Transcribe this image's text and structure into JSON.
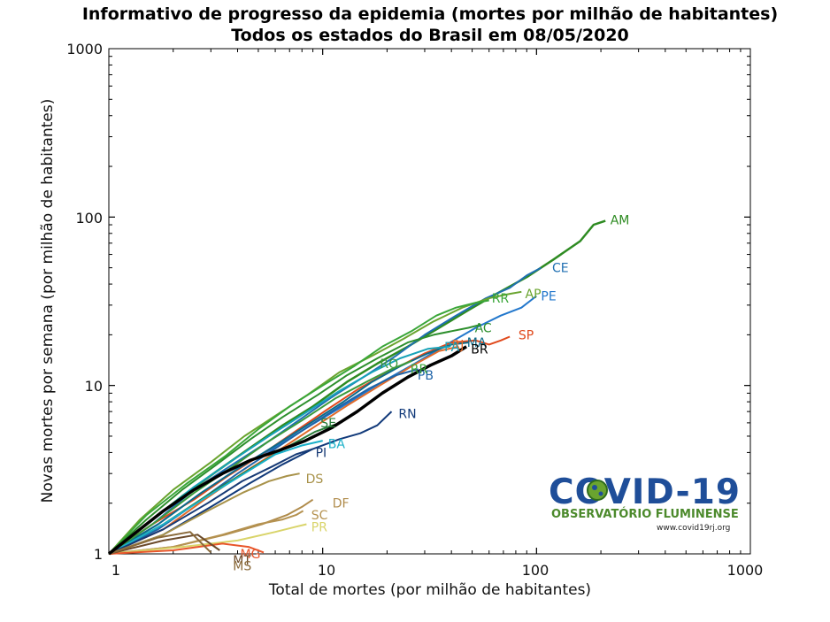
{
  "chart_data": {
    "type": "line",
    "title": "Informativo de progresso da epidemia (mortes por milhão de habitantes)",
    "subtitle": "Todos os estados do Brasil em 08/05/2020",
    "xlabel": "Total de mortes (por milhão de habitantes)",
    "ylabel": "Novas mortes por semana (por milhão de habitantes)",
    "x_scale": "log",
    "y_scale": "log",
    "xlim": [
      1,
      1000
    ],
    "ylim": [
      1,
      1000
    ],
    "x_ticks": [
      "1",
      "10",
      "100",
      "1000"
    ],
    "y_ticks": [
      "1",
      "10",
      "100",
      "1000"
    ],
    "grid": false,
    "series": [
      {
        "name": "AM",
        "color": "#2e8b22",
        "width": 2.5,
        "x": [
          1,
          1.5,
          2.2,
          3.2,
          4.5,
          6.5,
          9,
          13,
          18,
          25,
          35,
          48,
          65,
          90,
          120,
          160,
          185,
          210
        ],
        "y": [
          1,
          1.5,
          2.2,
          3.1,
          4.2,
          5.8,
          7.5,
          10.5,
          13.5,
          17,
          22,
          28,
          35,
          44,
          56,
          72,
          90,
          95
        ]
      },
      {
        "name": "CE",
        "color": "#1f6fb2",
        "width": 2,
        "x": [
          1,
          1.6,
          2.5,
          3.8,
          5.5,
          8,
          11,
          16,
          22,
          30,
          42,
          58,
          75,
          90,
          105
        ],
        "y": [
          1,
          1.5,
          2.4,
          3.4,
          4.6,
          6.4,
          8.5,
          11.5,
          15,
          20,
          26,
          33,
          38,
          45,
          50
        ]
      },
      {
        "name": "AP",
        "color": "#6aa42f",
        "width": 2,
        "x": [
          1,
          1.4,
          2,
          3,
          4.3,
          6,
          8.5,
          12,
          17,
          24,
          33,
          45,
          60,
          75,
          85
        ],
        "y": [
          1,
          1.6,
          2.4,
          3.5,
          5,
          6.6,
          8.8,
          12,
          15,
          19,
          24,
          29,
          33,
          35,
          36
        ]
      },
      {
        "name": "PE",
        "color": "#2277cc",
        "width": 2,
        "x": [
          1,
          1.7,
          2.7,
          4,
          6,
          9,
          13,
          19,
          27,
          38,
          52,
          68,
          85,
          100
        ],
        "y": [
          1,
          1.5,
          2.3,
          3.2,
          4.3,
          5.9,
          7.8,
          10.5,
          13.5,
          17.5,
          22,
          26,
          29,
          34
        ]
      },
      {
        "name": "RR",
        "color": "#3aa639",
        "width": 2,
        "x": [
          1,
          1.5,
          2.3,
          3.5,
          5,
          7,
          10,
          14,
          19,
          26,
          34,
          42,
          52,
          60
        ],
        "y": [
          1,
          1.7,
          2.6,
          3.8,
          5.5,
          7.5,
          10,
          13,
          17,
          21,
          26,
          29,
          31,
          32
        ]
      },
      {
        "name": "SP",
        "color": "#e0491c",
        "width": 2,
        "x": [
          1,
          1.6,
          2.5,
          3.6,
          5.2,
          7.4,
          10.5,
          15,
          21,
          30,
          40,
          52,
          60,
          68,
          75
        ],
        "y": [
          1,
          1.5,
          2.1,
          2.9,
          3.9,
          5.3,
          7.2,
          9.7,
          12.3,
          15.5,
          18,
          18.5,
          17.5,
          18.5,
          19.5
        ]
      },
      {
        "name": "AC",
        "color": "#2d8f2d",
        "width": 2,
        "x": [
          1,
          1.5,
          2.2,
          3.2,
          4.6,
          6.5,
          9.5,
          13,
          18,
          25,
          33,
          40,
          48,
          55
        ],
        "y": [
          1,
          1.6,
          2.4,
          3.4,
          4.8,
          6.5,
          8.8,
          11.5,
          14.5,
          18,
          20,
          21,
          22,
          23
        ]
      },
      {
        "name": "MA",
        "color": "#0d6b8a",
        "width": 2,
        "x": [
          1,
          1.7,
          2.7,
          4,
          6,
          8.8,
          12.5,
          17,
          23,
          31,
          40,
          48
        ],
        "y": [
          1,
          1.5,
          2.3,
          3.2,
          4.4,
          6,
          8,
          10.5,
          13,
          15.5,
          17.5,
          18
        ]
      },
      {
        "name": "RJ",
        "color": "#e06a2a",
        "width": 2,
        "x": [
          1,
          1.8,
          2.8,
          4.2,
          6.2,
          9,
          13,
          18.5,
          26,
          35,
          43
        ],
        "y": [
          1,
          1.4,
          2.1,
          3,
          4.1,
          5.6,
          7.6,
          10,
          13,
          16,
          17
        ]
      },
      {
        "name": "PA",
        "color": "#17a2b8",
        "width": 2,
        "x": [
          1,
          1.6,
          2.5,
          3.8,
          5.6,
          8.2,
          12,
          17,
          23,
          31,
          39
        ],
        "y": [
          1,
          1.6,
          2.5,
          3.6,
          5,
          6.8,
          9.3,
          12,
          14.5,
          16.5,
          17
        ]
      },
      {
        "name": "BR",
        "color": "#000000",
        "width": 3.5,
        "x": [
          1,
          1.3,
          1.8,
          2.5,
          3.4,
          4.6,
          6.2,
          8.3,
          11,
          14.5,
          19,
          25,
          32,
          40,
          47
        ],
        "y": [
          1,
          1.3,
          1.8,
          2.4,
          3,
          3.6,
          4.1,
          4.7,
          5.6,
          7,
          9,
          11.2,
          13.2,
          15,
          17
        ]
      },
      {
        "name": "RO",
        "color": "#3c9a3c",
        "width": 2,
        "x": [
          1,
          1.6,
          2.5,
          3.8,
          5.5,
          8,
          11.5,
          16,
          21,
          26
        ],
        "y": [
          1,
          1.5,
          2.3,
          3.3,
          4.6,
          6.2,
          8.4,
          10.5,
          12.5,
          14
        ]
      },
      {
        "name": "PB",
        "color": "#1f64a8",
        "width": 2,
        "x": [
          1,
          1.7,
          2.7,
          4,
          5.8,
          8.4,
          12,
          16.5,
          22,
          28
        ],
        "y": [
          1,
          1.4,
          2.1,
          3,
          4.1,
          5.6,
          7.5,
          9.6,
          11.5,
          12.5
        ]
      },
      {
        "name": "RN",
        "color": "#123a7a",
        "width": 2,
        "x": [
          1,
          1.8,
          3,
          4.5,
          6.5,
          9,
          12,
          15,
          18,
          21
        ],
        "y": [
          1,
          1.3,
          1.9,
          2.6,
          3.4,
          4.2,
          4.8,
          5.2,
          5.8,
          7
        ]
      },
      {
        "name": "SE",
        "color": "#2a7d3a",
        "width": 2,
        "x": [
          1,
          1.8,
          3,
          4.6,
          6.8,
          9.2,
          12
        ],
        "y": [
          1,
          1.5,
          2.3,
          3.2,
          4.3,
          5.3,
          6
        ]
      },
      {
        "name": "BA",
        "color": "#1ab0c9",
        "width": 2,
        "x": [
          1,
          1.8,
          2.9,
          4.3,
          6,
          8,
          10
        ],
        "y": [
          1,
          1.5,
          2.2,
          3,
          3.9,
          4.4,
          4.7
        ]
      },
      {
        "name": "PI",
        "color": "#173a75",
        "width": 2,
        "x": [
          1,
          1.8,
          2.9,
          4.2,
          5.8,
          7.5,
          9
        ],
        "y": [
          1,
          1.4,
          2,
          2.7,
          3.3,
          3.9,
          4.2
        ]
      },
      {
        "name": "ES",
        "color": "#a8924a",
        "width": 2,
        "x": [
          1,
          1.8,
          2.9,
          4.2,
          5.6,
          6.8,
          7.8
        ],
        "y": [
          1,
          1.3,
          1.8,
          2.3,
          2.7,
          2.9,
          3
        ]
      },
      {
        "name": "DF",
        "color": "#b08c4c",
        "width": 2,
        "x": [
          1,
          2,
          3.5,
          5.2,
          6.8,
          8,
          9
        ],
        "y": [
          1,
          1.1,
          1.3,
          1.5,
          1.7,
          1.9,
          2.1
        ]
      },
      {
        "name": "SC",
        "color": "#b59250",
        "width": 2,
        "x": [
          1,
          2,
          3.4,
          5,
          6.5,
          7.5,
          8.1
        ],
        "y": [
          1,
          1.1,
          1.3,
          1.5,
          1.6,
          1.7,
          1.8
        ]
      },
      {
        "name": "PR",
        "color": "#d9d46a",
        "width": 2,
        "x": [
          1,
          2.2,
          4,
          6,
          7.5,
          8.4
        ],
        "y": [
          1,
          1.1,
          1.2,
          1.35,
          1.45,
          1.5
        ]
      },
      {
        "name": "MG",
        "color": "#e8552a",
        "width": 2,
        "x": [
          1,
          2,
          3.4,
          4.5,
          5.3
        ],
        "y": [
          1,
          1.05,
          1.15,
          1.1,
          1.02
        ]
      },
      {
        "name": "MT",
        "color": "#6b4a2a",
        "width": 2,
        "x": [
          1,
          1.8,
          2.6,
          3.3
        ],
        "y": [
          1,
          1.2,
          1.3,
          1.05
        ]
      },
      {
        "name": "MS",
        "color": "#8a6a3a",
        "width": 2,
        "x": [
          1,
          1.7,
          2.4,
          3
        ],
        "y": [
          1,
          1.25,
          1.35,
          1.02
        ]
      }
    ],
    "labels": [
      {
        "text": "AM",
        "x": 215,
        "y": 96,
        "color": "#2e8b22"
      },
      {
        "text": "CE",
        "x": 115,
        "y": 50,
        "color": "#1f6fb2"
      },
      {
        "text": "AP",
        "x": 86,
        "y": 35,
        "color": "#6aa42f"
      },
      {
        "text": "PE",
        "x": 102,
        "y": 34,
        "color": "#2277cc"
      },
      {
        "text": "RR",
        "x": 60,
        "y": 33,
        "color": "#3aa639"
      },
      {
        "text": "SP",
        "x": 80,
        "y": 20,
        "color": "#e0491c"
      },
      {
        "text": "AC",
        "x": 50,
        "y": 22,
        "color": "#2d8f2d"
      },
      {
        "text": "MA",
        "x": 46,
        "y": 18,
        "color": "#0d6b8a"
      },
      {
        "text": "RJ",
        "x": 39,
        "y": 17.5,
        "color": "#e06a2a"
      },
      {
        "text": "PA",
        "x": 36,
        "y": 17,
        "color": "#17a2b8"
      },
      {
        "text": "BR",
        "x": 48,
        "y": 16.5,
        "color": "#000000"
      },
      {
        "text": "RO",
        "x": 18,
        "y": 13.5,
        "color": "#3c9a3c"
      },
      {
        "text": "PB",
        "x": 27,
        "y": 11.5,
        "color": "#1f64a8"
      },
      {
        "text": "RR",
        "x": 25,
        "y": 12.5,
        "color": "#3aa639"
      },
      {
        "text": "RN",
        "x": 22,
        "y": 6.8,
        "color": "#123a7a"
      },
      {
        "text": "SE",
        "x": 9.5,
        "y": 6,
        "color": "#2a7d3a"
      },
      {
        "text": "BA",
        "x": 10.3,
        "y": 4.5,
        "color": "#1ab0c9"
      },
      {
        "text": "PI",
        "x": 9,
        "y": 4.0,
        "color": "#173a75"
      },
      {
        "text": "DS",
        "x": 8.1,
        "y": 2.8,
        "color": "#a8924a"
      },
      {
        "text": "DF",
        "x": 10.8,
        "y": 2.0,
        "color": "#b08c4c"
      },
      {
        "text": "SC",
        "x": 8.6,
        "y": 1.7,
        "color": "#b59250"
      },
      {
        "text": "PR",
        "x": 8.6,
        "y": 1.45,
        "color": "#d9d46a"
      },
      {
        "text": "MG",
        "x": 4.0,
        "y": 1.0,
        "color": "#e8552a"
      },
      {
        "text": "MT",
        "x": 3.7,
        "y": 0.92,
        "color": "#6b4a2a"
      },
      {
        "text": "MS",
        "x": 3.7,
        "y": 0.85,
        "color": "#8a6a3a"
      }
    ]
  },
  "logo": {
    "main": "COVID-19",
    "sub": "OBSERVATÓRIO FLUMINENSE",
    "url": "www.covid19rj.org"
  }
}
